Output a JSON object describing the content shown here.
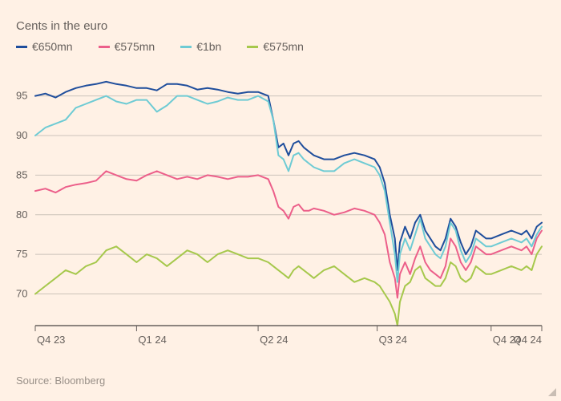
{
  "subtitle": "Cents in the euro",
  "source": "Source: Bloomberg",
  "background_color": "#fff1e5",
  "text_color": "#66605c",
  "grid_color": "#ccc3ba",
  "chart": {
    "type": "line",
    "ylim": [
      66,
      98
    ],
    "yticks": [
      70,
      75,
      80,
      85,
      90,
      95
    ],
    "xtick_labels": [
      "Q4 23",
      "Q1 24",
      "Q2 24",
      "Q3 24",
      "Q4 24",
      "Q4 24"
    ],
    "xtick_positions": [
      0,
      0.2,
      0.44,
      0.675,
      0.9,
      1.0
    ],
    "line_width": 2,
    "series": [
      {
        "name": "€650mn",
        "color": "#1f4e9c",
        "points": [
          [
            0.0,
            95.0
          ],
          [
            0.02,
            95.3
          ],
          [
            0.04,
            94.8
          ],
          [
            0.06,
            95.5
          ],
          [
            0.08,
            96.0
          ],
          [
            0.1,
            96.3
          ],
          [
            0.12,
            96.5
          ],
          [
            0.14,
            96.8
          ],
          [
            0.16,
            96.5
          ],
          [
            0.18,
            96.3
          ],
          [
            0.2,
            96.0
          ],
          [
            0.22,
            96.0
          ],
          [
            0.24,
            95.7
          ],
          [
            0.26,
            96.5
          ],
          [
            0.28,
            96.5
          ],
          [
            0.3,
            96.3
          ],
          [
            0.32,
            95.8
          ],
          [
            0.34,
            96.0
          ],
          [
            0.36,
            95.8
          ],
          [
            0.38,
            95.5
          ],
          [
            0.4,
            95.3
          ],
          [
            0.42,
            95.5
          ],
          [
            0.44,
            95.5
          ],
          [
            0.46,
            95.0
          ],
          [
            0.47,
            92.0
          ],
          [
            0.48,
            88.5
          ],
          [
            0.49,
            89.0
          ],
          [
            0.5,
            87.5
          ],
          [
            0.51,
            89.0
          ],
          [
            0.52,
            89.3
          ],
          [
            0.53,
            88.5
          ],
          [
            0.54,
            88.0
          ],
          [
            0.55,
            87.5
          ],
          [
            0.57,
            87.0
          ],
          [
            0.59,
            87.0
          ],
          [
            0.61,
            87.5
          ],
          [
            0.63,
            87.8
          ],
          [
            0.65,
            87.5
          ],
          [
            0.67,
            87.0
          ],
          [
            0.68,
            86.0
          ],
          [
            0.69,
            84.0
          ],
          [
            0.7,
            80.0
          ],
          [
            0.71,
            77.0
          ],
          [
            0.715,
            73.0
          ],
          [
            0.72,
            76.5
          ],
          [
            0.73,
            78.5
          ],
          [
            0.74,
            77.0
          ],
          [
            0.75,
            79.0
          ],
          [
            0.76,
            80.0
          ],
          [
            0.77,
            78.0
          ],
          [
            0.78,
            77.0
          ],
          [
            0.79,
            76.0
          ],
          [
            0.8,
            75.5
          ],
          [
            0.81,
            77.0
          ],
          [
            0.82,
            79.5
          ],
          [
            0.83,
            78.5
          ],
          [
            0.84,
            76.5
          ],
          [
            0.85,
            75.0
          ],
          [
            0.86,
            76.0
          ],
          [
            0.87,
            78.0
          ],
          [
            0.88,
            77.5
          ],
          [
            0.89,
            77.0
          ],
          [
            0.9,
            77.0
          ],
          [
            0.92,
            77.5
          ],
          [
            0.94,
            78.0
          ],
          [
            0.96,
            77.5
          ],
          [
            0.97,
            78.0
          ],
          [
            0.98,
            77.0
          ],
          [
            0.99,
            78.5
          ],
          [
            1.0,
            79.0
          ]
        ]
      },
      {
        "name": "€575mn",
        "color": "#ec5f8a",
        "points": [
          [
            0.0,
            83.0
          ],
          [
            0.02,
            83.3
          ],
          [
            0.04,
            82.8
          ],
          [
            0.06,
            83.5
          ],
          [
            0.08,
            83.8
          ],
          [
            0.1,
            84.0
          ],
          [
            0.12,
            84.3
          ],
          [
            0.14,
            85.5
          ],
          [
            0.16,
            85.0
          ],
          [
            0.18,
            84.5
          ],
          [
            0.2,
            84.3
          ],
          [
            0.22,
            85.0
          ],
          [
            0.24,
            85.5
          ],
          [
            0.26,
            85.0
          ],
          [
            0.28,
            84.5
          ],
          [
            0.3,
            84.8
          ],
          [
            0.32,
            84.5
          ],
          [
            0.34,
            85.0
          ],
          [
            0.36,
            84.8
          ],
          [
            0.38,
            84.5
          ],
          [
            0.4,
            84.8
          ],
          [
            0.42,
            84.8
          ],
          [
            0.44,
            85.0
          ],
          [
            0.46,
            84.5
          ],
          [
            0.47,
            83.0
          ],
          [
            0.48,
            81.0
          ],
          [
            0.49,
            80.5
          ],
          [
            0.5,
            79.5
          ],
          [
            0.51,
            81.0
          ],
          [
            0.52,
            81.3
          ],
          [
            0.53,
            80.5
          ],
          [
            0.54,
            80.5
          ],
          [
            0.55,
            80.8
          ],
          [
            0.57,
            80.5
          ],
          [
            0.59,
            80.0
          ],
          [
            0.61,
            80.3
          ],
          [
            0.63,
            80.8
          ],
          [
            0.65,
            80.5
          ],
          [
            0.67,
            80.0
          ],
          [
            0.68,
            79.0
          ],
          [
            0.69,
            77.5
          ],
          [
            0.7,
            74.0
          ],
          [
            0.71,
            72.0
          ],
          [
            0.715,
            69.5
          ],
          [
            0.72,
            72.5
          ],
          [
            0.73,
            74.0
          ],
          [
            0.74,
            72.5
          ],
          [
            0.75,
            74.5
          ],
          [
            0.76,
            76.0
          ],
          [
            0.77,
            74.0
          ],
          [
            0.78,
            73.0
          ],
          [
            0.79,
            72.5
          ],
          [
            0.8,
            72.0
          ],
          [
            0.81,
            73.5
          ],
          [
            0.82,
            77.0
          ],
          [
            0.83,
            76.0
          ],
          [
            0.84,
            74.0
          ],
          [
            0.85,
            73.0
          ],
          [
            0.86,
            74.0
          ],
          [
            0.87,
            76.0
          ],
          [
            0.88,
            75.5
          ],
          [
            0.89,
            75.0
          ],
          [
            0.9,
            75.0
          ],
          [
            0.92,
            75.5
          ],
          [
            0.94,
            76.0
          ],
          [
            0.96,
            75.5
          ],
          [
            0.97,
            76.0
          ],
          [
            0.98,
            75.0
          ],
          [
            0.99,
            77.0
          ],
          [
            1.0,
            78.0
          ]
        ]
      },
      {
        "name": "€1bn",
        "color": "#6ecbd4",
        "points": [
          [
            0.0,
            90.0
          ],
          [
            0.02,
            91.0
          ],
          [
            0.04,
            91.5
          ],
          [
            0.06,
            92.0
          ],
          [
            0.08,
            93.5
          ],
          [
            0.1,
            94.0
          ],
          [
            0.12,
            94.5
          ],
          [
            0.14,
            95.0
          ],
          [
            0.16,
            94.3
          ],
          [
            0.18,
            94.0
          ],
          [
            0.2,
            94.5
          ],
          [
            0.22,
            94.5
          ],
          [
            0.24,
            93.0
          ],
          [
            0.26,
            93.8
          ],
          [
            0.28,
            95.0
          ],
          [
            0.3,
            95.0
          ],
          [
            0.32,
            94.5
          ],
          [
            0.34,
            94.0
          ],
          [
            0.36,
            94.3
          ],
          [
            0.38,
            94.8
          ],
          [
            0.4,
            94.5
          ],
          [
            0.42,
            94.5
          ],
          [
            0.44,
            95.0
          ],
          [
            0.46,
            94.3
          ],
          [
            0.47,
            92.0
          ],
          [
            0.48,
            87.5
          ],
          [
            0.49,
            87.0
          ],
          [
            0.5,
            85.5
          ],
          [
            0.51,
            87.5
          ],
          [
            0.52,
            87.8
          ],
          [
            0.53,
            87.0
          ],
          [
            0.54,
            86.5
          ],
          [
            0.55,
            86.0
          ],
          [
            0.57,
            85.5
          ],
          [
            0.59,
            85.5
          ],
          [
            0.61,
            86.5
          ],
          [
            0.63,
            87.0
          ],
          [
            0.65,
            86.5
          ],
          [
            0.67,
            86.0
          ],
          [
            0.68,
            85.0
          ],
          [
            0.69,
            83.0
          ],
          [
            0.7,
            79.0
          ],
          [
            0.71,
            75.0
          ],
          [
            0.715,
            71.5
          ],
          [
            0.72,
            75.0
          ],
          [
            0.73,
            77.0
          ],
          [
            0.74,
            75.5
          ],
          [
            0.75,
            77.5
          ],
          [
            0.76,
            79.5
          ],
          [
            0.77,
            77.0
          ],
          [
            0.78,
            76.0
          ],
          [
            0.79,
            75.0
          ],
          [
            0.8,
            74.5
          ],
          [
            0.81,
            76.0
          ],
          [
            0.82,
            79.0
          ],
          [
            0.83,
            78.0
          ],
          [
            0.84,
            75.5
          ],
          [
            0.85,
            74.0
          ],
          [
            0.86,
            75.0
          ],
          [
            0.87,
            77.0
          ],
          [
            0.88,
            76.5
          ],
          [
            0.89,
            76.0
          ],
          [
            0.9,
            76.0
          ],
          [
            0.92,
            76.5
          ],
          [
            0.94,
            77.0
          ],
          [
            0.96,
            76.5
          ],
          [
            0.97,
            77.0
          ],
          [
            0.98,
            76.0
          ],
          [
            0.99,
            77.5
          ],
          [
            1.0,
            78.5
          ]
        ]
      },
      {
        "name": "€575mn",
        "color": "#a6c84c",
        "points": [
          [
            0.0,
            70.0
          ],
          [
            0.02,
            71.0
          ],
          [
            0.04,
            72.0
          ],
          [
            0.06,
            73.0
          ],
          [
            0.08,
            72.5
          ],
          [
            0.1,
            73.5
          ],
          [
            0.12,
            74.0
          ],
          [
            0.14,
            75.5
          ],
          [
            0.16,
            76.0
          ],
          [
            0.18,
            75.0
          ],
          [
            0.2,
            74.0
          ],
          [
            0.22,
            75.0
          ],
          [
            0.24,
            74.5
          ],
          [
            0.26,
            73.5
          ],
          [
            0.28,
            74.5
          ],
          [
            0.3,
            75.5
          ],
          [
            0.32,
            75.0
          ],
          [
            0.34,
            74.0
          ],
          [
            0.36,
            75.0
          ],
          [
            0.38,
            75.5
          ],
          [
            0.4,
            75.0
          ],
          [
            0.42,
            74.5
          ],
          [
            0.44,
            74.5
          ],
          [
            0.46,
            74.0
          ],
          [
            0.47,
            73.5
          ],
          [
            0.48,
            73.0
          ],
          [
            0.49,
            72.5
          ],
          [
            0.5,
            72.0
          ],
          [
            0.51,
            73.0
          ],
          [
            0.52,
            73.5
          ],
          [
            0.53,
            73.0
          ],
          [
            0.54,
            72.5
          ],
          [
            0.55,
            72.0
          ],
          [
            0.57,
            73.0
          ],
          [
            0.59,
            73.5
          ],
          [
            0.61,
            72.5
          ],
          [
            0.63,
            71.5
          ],
          [
            0.65,
            72.0
          ],
          [
            0.67,
            71.5
          ],
          [
            0.68,
            71.0
          ],
          [
            0.69,
            70.0
          ],
          [
            0.7,
            69.0
          ],
          [
            0.71,
            67.5
          ],
          [
            0.715,
            66.0
          ],
          [
            0.72,
            69.0
          ],
          [
            0.73,
            71.0
          ],
          [
            0.74,
            71.5
          ],
          [
            0.75,
            73.0
          ],
          [
            0.76,
            73.5
          ],
          [
            0.77,
            72.0
          ],
          [
            0.78,
            71.5
          ],
          [
            0.79,
            71.0
          ],
          [
            0.8,
            71.0
          ],
          [
            0.81,
            72.0
          ],
          [
            0.82,
            74.0
          ],
          [
            0.83,
            73.5
          ],
          [
            0.84,
            72.0
          ],
          [
            0.85,
            71.5
          ],
          [
            0.86,
            72.0
          ],
          [
            0.87,
            73.5
          ],
          [
            0.88,
            73.0
          ],
          [
            0.89,
            72.5
          ],
          [
            0.9,
            72.5
          ],
          [
            0.92,
            73.0
          ],
          [
            0.94,
            73.5
          ],
          [
            0.96,
            73.0
          ],
          [
            0.97,
            73.5
          ],
          [
            0.98,
            73.0
          ],
          [
            0.99,
            75.0
          ],
          [
            1.0,
            76.0
          ]
        ]
      }
    ]
  }
}
